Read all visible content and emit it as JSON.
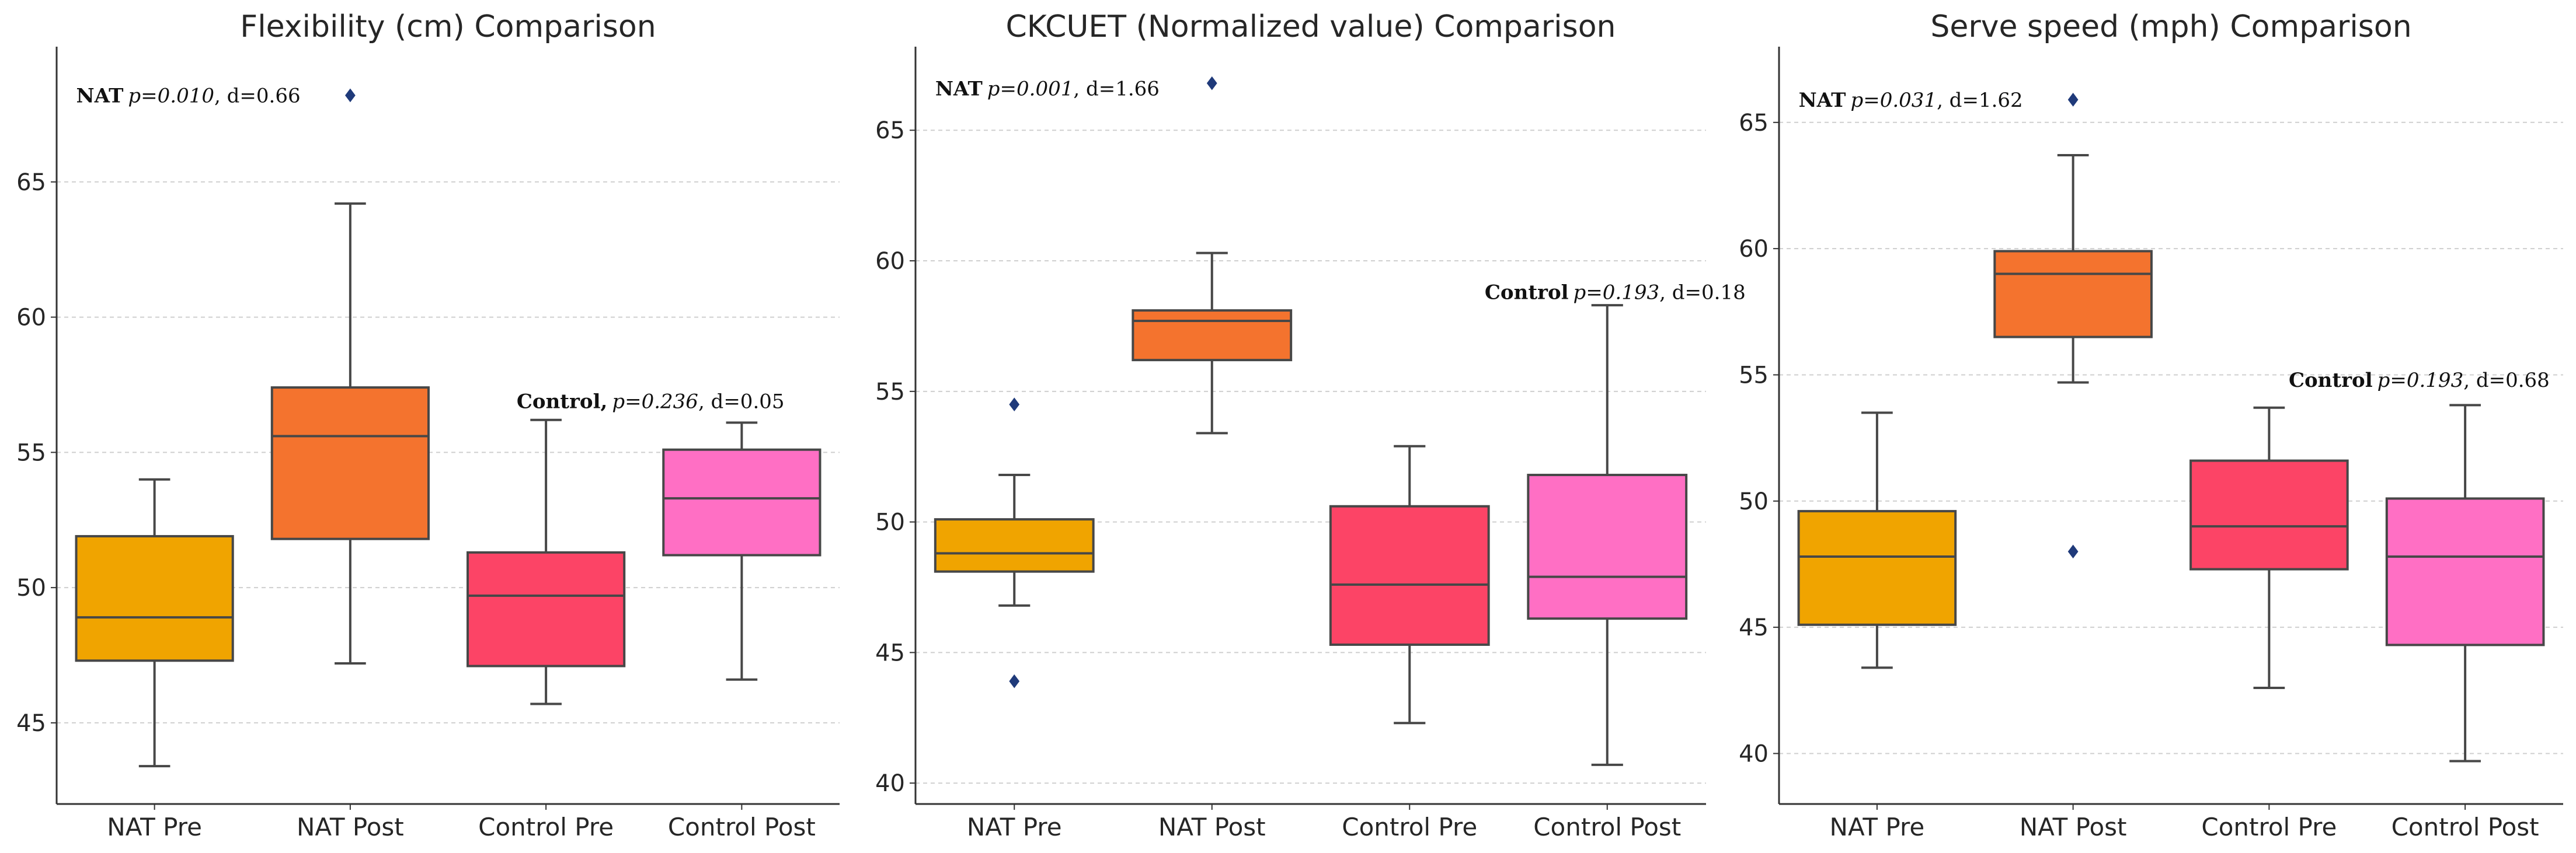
{
  "chart_data": [
    {
      "type": "box",
      "title": "Flexibility (cm) Comparison",
      "categories": [
        "NAT Pre",
        "NAT Post",
        "Control Pre",
        "Control Post"
      ],
      "colors": [
        "#f0a400",
        "#f4732e",
        "#fc4466",
        "#ff6fc4"
      ],
      "ylim": [
        42,
        70
      ],
      "yticks": [
        45,
        50,
        55,
        60,
        65
      ],
      "grid": true,
      "boxes": [
        {
          "name": "NAT Pre",
          "whisker_low": 43.4,
          "q1": 47.3,
          "median": 48.9,
          "q3": 51.9,
          "whisker_high": 54.0,
          "outliers": []
        },
        {
          "name": "NAT Post",
          "whisker_low": 47.2,
          "q1": 51.8,
          "median": 55.6,
          "q3": 57.4,
          "whisker_high": 64.2,
          "outliers": [
            68.2
          ]
        },
        {
          "name": "Control Pre",
          "whisker_low": 45.7,
          "q1": 47.1,
          "median": 49.7,
          "q3": 51.3,
          "whisker_high": 56.2,
          "outliers": []
        },
        {
          "name": "Control Post",
          "whisker_low": 46.6,
          "q1": 51.2,
          "median": 53.3,
          "q3": 55.1,
          "whisker_high": 56.1,
          "outliers": []
        }
      ],
      "annotations": [
        {
          "group": "NAT",
          "p_label": "p=0.010",
          "d_label": ", d=0.66",
          "x_index": 0.1,
          "y": 68.2
        },
        {
          "group": "Control,",
          "p_label": "p=0.236",
          "d_label": ", d=0.05",
          "x_index": 2.35,
          "y": 56.9
        }
      ]
    },
    {
      "type": "box",
      "title": "CKCUET (Normalized value) Comparison",
      "categories": [
        "NAT Pre",
        "NAT Post",
        "Control Pre",
        "Control Post"
      ],
      "colors": [
        "#f0a400",
        "#f4732e",
        "#fc4466",
        "#ff6fc4"
      ],
      "ylim": [
        39.2,
        68.2
      ],
      "yticks": [
        40,
        45,
        50,
        55,
        60,
        65
      ],
      "grid": true,
      "boxes": [
        {
          "name": "NAT Pre",
          "whisker_low": 46.8,
          "q1": 48.1,
          "median": 48.8,
          "q3": 50.1,
          "whisker_high": 51.8,
          "outliers": [
            54.5,
            43.9
          ]
        },
        {
          "name": "NAT Post",
          "whisker_low": 53.4,
          "q1": 56.2,
          "median": 57.7,
          "q3": 58.1,
          "whisker_high": 60.3,
          "outliers": [
            66.8
          ]
        },
        {
          "name": "Control Pre",
          "whisker_low": 42.3,
          "q1": 45.3,
          "median": 47.6,
          "q3": 50.6,
          "whisker_high": 52.9,
          "outliers": []
        },
        {
          "name": "Control Post",
          "whisker_low": 40.7,
          "q1": 46.3,
          "median": 47.9,
          "q3": 51.8,
          "whisker_high": 58.3,
          "outliers": []
        }
      ],
      "annotations": [
        {
          "group": "NAT",
          "p_label": "p=0.001",
          "d_label": ", d=1.66",
          "x_index": 0.1,
          "y": 66.6
        },
        {
          "group": "Control",
          "p_label": "p=0.193",
          "d_label": ", d=0.18",
          "x_index": 2.88,
          "y": 58.8
        }
      ]
    },
    {
      "type": "box",
      "title": "Serve speed (mph) Comparison",
      "categories": [
        "NAT Pre",
        "NAT Post",
        "Control Pre",
        "Control Post"
      ],
      "colors": [
        "#f0a400",
        "#f4732e",
        "#fc4466",
        "#ff6fc4"
      ],
      "ylim": [
        38,
        68
      ],
      "yticks": [
        40,
        45,
        50,
        55,
        60,
        65
      ],
      "grid": true,
      "boxes": [
        {
          "name": "NAT Pre",
          "whisker_low": 43.4,
          "q1": 45.1,
          "median": 47.8,
          "q3": 49.6,
          "whisker_high": 53.5,
          "outliers": []
        },
        {
          "name": "NAT Post",
          "whisker_low": 54.7,
          "q1": 56.5,
          "median": 59.0,
          "q3": 59.9,
          "whisker_high": 63.7,
          "outliers": [
            65.9,
            48.0
          ]
        },
        {
          "name": "Control Pre",
          "whisker_low": 42.6,
          "q1": 47.3,
          "median": 49.0,
          "q3": 51.6,
          "whisker_high": 53.7,
          "outliers": []
        },
        {
          "name": "Control Post",
          "whisker_low": 39.7,
          "q1": 44.3,
          "median": 47.8,
          "q3": 50.1,
          "whisker_high": 53.8,
          "outliers": []
        }
      ],
      "annotations": [
        {
          "group": "NAT",
          "p_label": "p=0.031",
          "d_label": ", d=1.62",
          "x_index": 0.1,
          "y": 65.9
        },
        {
          "group": "Control",
          "p_label": "p=0.193",
          "d_label": ", d=0.68",
          "x_index": 2.6,
          "y": 54.8
        }
      ]
    }
  ]
}
